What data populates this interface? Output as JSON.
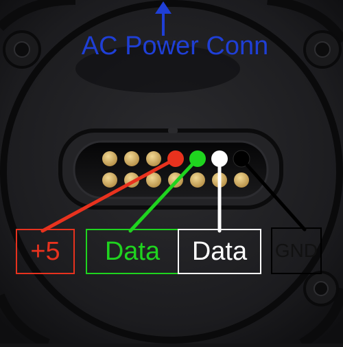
{
  "title": {
    "text": "AC Power Conn",
    "color": "#1f3fd6"
  },
  "labels": {
    "plus5": {
      "text": "+5",
      "color": "#e8321e"
    },
    "data_green": {
      "text": "Data",
      "color": "#1fd41f"
    },
    "data_white": {
      "text": "Data",
      "color": "#ffffff"
    },
    "gnd": {
      "text": "GND",
      "color": "#111111"
    }
  },
  "colors": {
    "arrow": "#1f3fd6",
    "wire_red": "#e8321e",
    "wire_green": "#1fd41f",
    "wire_white": "#ffffff",
    "wire_black": "#000000",
    "pin_gold": "#d9b86a"
  }
}
